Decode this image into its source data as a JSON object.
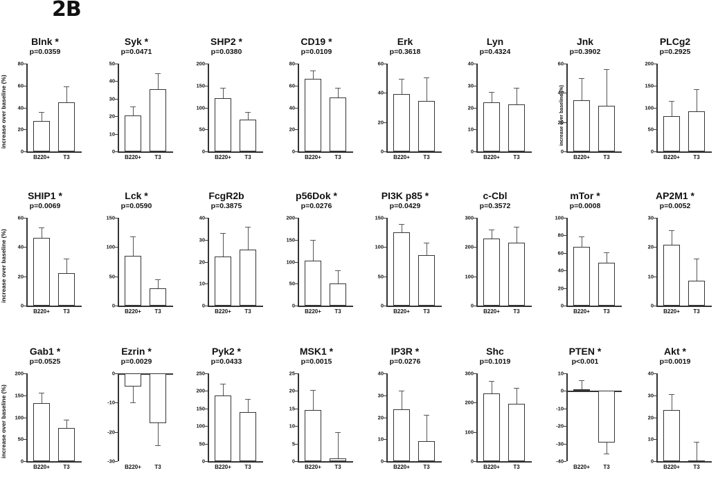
{
  "figure": {
    "label": "2B",
    "ylabel": "increase over baseline (%)",
    "groups": [
      "B220+",
      "T3"
    ]
  },
  "chart_data": [
    {
      "type": "bar",
      "title": "Blnk *",
      "pvalue": "p=0.0359",
      "categories": [
        "B220+",
        "T3"
      ],
      "values": [
        28,
        45
      ],
      "errors": [
        8,
        14
      ],
      "yticks": [
        0,
        20,
        40,
        60,
        80
      ],
      "ylim": [
        0,
        80
      ],
      "ylabel": "increase over baseline (%)"
    },
    {
      "type": "bar",
      "title": "Syk *",
      "pvalue": "p=0.0471",
      "categories": [
        "B220+",
        "T3"
      ],
      "values": [
        20.5,
        35.5
      ],
      "errors": [
        5,
        9
      ],
      "yticks": [
        0,
        10,
        20,
        30,
        40,
        50
      ],
      "ylim": [
        0,
        50
      ]
    },
    {
      "type": "bar",
      "title": "SHP2 *",
      "pvalue": "p=0.0380",
      "categories": [
        "B220+",
        "T3"
      ],
      "values": [
        122,
        72
      ],
      "errors": [
        23,
        18
      ],
      "yticks": [
        0,
        50,
        100,
        150,
        200
      ],
      "ylim": [
        0,
        200
      ]
    },
    {
      "type": "bar",
      "title": "CD19 *",
      "pvalue": "p=0.0109",
      "categories": [
        "B220+",
        "T3"
      ],
      "values": [
        66,
        49
      ],
      "errors": [
        8,
        9
      ],
      "yticks": [
        0,
        20,
        40,
        60,
        80
      ],
      "ylim": [
        0,
        80
      ]
    },
    {
      "type": "bar",
      "title": "Erk",
      "pvalue": "p=0.3618",
      "categories": [
        "B220+",
        "T3"
      ],
      "values": [
        39,
        34.5
      ],
      "errors": [
        10.5,
        16
      ],
      "yticks": [
        0,
        20,
        40,
        60
      ],
      "ylim": [
        0,
        60
      ]
    },
    {
      "type": "bar",
      "title": "Lyn",
      "pvalue": "p=0.4324",
      "categories": [
        "B220+",
        "T3"
      ],
      "values": [
        22.5,
        21.5
      ],
      "errors": [
        4.5,
        7.5
      ],
      "yticks": [
        0,
        10,
        20,
        30,
        40
      ],
      "ylim": [
        0,
        40
      ]
    },
    {
      "type": "bar",
      "title": "Jnk",
      "pvalue": "p=0.3902",
      "categories": [
        "B220+",
        "T3"
      ],
      "values": [
        35,
        31
      ],
      "errors": [
        15,
        25
      ],
      "yticks": [
        0,
        20,
        40,
        60
      ],
      "ylim": [
        0,
        60
      ],
      "ylabel": "increase over baseline (%)"
    },
    {
      "type": "bar",
      "title": "PLCg2",
      "pvalue": "p=0.2925",
      "categories": [
        "B220+",
        "T3"
      ],
      "values": [
        80,
        92
      ],
      "errors": [
        35,
        50
      ],
      "yticks": [
        0,
        50,
        100,
        150,
        200
      ],
      "ylim": [
        0,
        200
      ]
    },
    {
      "type": "bar",
      "title": "SHIP1 *",
      "pvalue": "p=0.0069",
      "categories": [
        "B220+",
        "T3"
      ],
      "values": [
        46.5,
        22
      ],
      "errors": [
        7,
        10
      ],
      "yticks": [
        0,
        20,
        40,
        60
      ],
      "ylim": [
        0,
        60
      ],
      "ylabel": "increase over baseline (%)"
    },
    {
      "type": "bar",
      "title": "Lck *",
      "pvalue": "p=0.0590",
      "categories": [
        "B220+",
        "T3"
      ],
      "values": [
        85,
        30
      ],
      "errors": [
        33,
        15
      ],
      "yticks": [
        0,
        50,
        100,
        150
      ],
      "ylim": [
        0,
        150
      ]
    },
    {
      "type": "bar",
      "title": "FcgR2b",
      "pvalue": "p=0.3875",
      "categories": [
        "B220+",
        "T3"
      ],
      "values": [
        22.5,
        25.5
      ],
      "errors": [
        10.5,
        10.5
      ],
      "yticks": [
        0,
        10,
        20,
        30,
        40
      ],
      "ylim": [
        0,
        40
      ]
    },
    {
      "type": "bar",
      "title": "p56Dok *",
      "pvalue": "p=0.0276",
      "categories": [
        "B220+",
        "T3"
      ],
      "values": [
        102,
        50
      ],
      "errors": [
        48,
        30
      ],
      "yticks": [
        0,
        50,
        100,
        150,
        200
      ],
      "ylim": [
        0,
        200
      ]
    },
    {
      "type": "bar",
      "title": "PI3K p85 *",
      "pvalue": "p=0.0429",
      "categories": [
        "B220+",
        "T3"
      ],
      "values": [
        125,
        86
      ],
      "errors": [
        14,
        21
      ],
      "yticks": [
        0,
        50,
        100,
        150
      ],
      "ylim": [
        0,
        150
      ]
    },
    {
      "type": "bar",
      "title": "c-Cbl",
      "pvalue": "p=0.3572",
      "categories": [
        "B220+",
        "T3"
      ],
      "values": [
        228,
        215
      ],
      "errors": [
        32,
        55
      ],
      "yticks": [
        0,
        100,
        200,
        300
      ],
      "ylim": [
        0,
        300
      ]
    },
    {
      "type": "bar",
      "title": "mTor *",
      "pvalue": "p=0.0008",
      "categories": [
        "B220+",
        "T3"
      ],
      "values": [
        67,
        49
      ],
      "errors": [
        12,
        12
      ],
      "yticks": [
        0,
        20,
        40,
        60,
        80,
        100
      ],
      "ylim": [
        0,
        100
      ]
    },
    {
      "type": "bar",
      "title": "AP2M1 *",
      "pvalue": "p=0.0052",
      "categories": [
        "B220+",
        "T3"
      ],
      "values": [
        20.7,
        8.5
      ],
      "errors": [
        5,
        7.5
      ],
      "yticks": [
        0,
        10,
        20,
        30
      ],
      "ylim": [
        0,
        30
      ]
    },
    {
      "type": "bar",
      "title": "Gab1 *",
      "pvalue": "p=0.0525",
      "categories": [
        "B220+",
        "T3"
      ],
      "values": [
        132,
        75
      ],
      "errors": [
        24,
        20
      ],
      "yticks": [
        0,
        50,
        100,
        150,
        200
      ],
      "ylim": [
        0,
        200
      ],
      "ylabel": "increase over baseline (%)"
    },
    {
      "type": "bar",
      "title": "Ezrin *",
      "pvalue": "p=0.0029",
      "categories": [
        "B220+",
        "T3"
      ],
      "values": [
        -4.5,
        -17
      ],
      "errors": [
        5.5,
        7.5
      ],
      "yticks": [
        -30,
        -20,
        -10,
        0
      ],
      "ylim": [
        -30,
        0
      ]
    },
    {
      "type": "bar",
      "title": "Pyk2 *",
      "pvalue": "p=0.0433",
      "categories": [
        "B220+",
        "T3"
      ],
      "values": [
        187,
        139
      ],
      "errors": [
        33,
        39
      ],
      "yticks": [
        0,
        50,
        100,
        150,
        200,
        250
      ],
      "ylim": [
        0,
        250
      ]
    },
    {
      "type": "bar",
      "title": "MSK1 *",
      "pvalue": "p=0.0015",
      "categories": [
        "B220+",
        "T3"
      ],
      "values": [
        14.5,
        0.8
      ],
      "errors": [
        5.8,
        7.5
      ],
      "yticks": [
        0,
        5,
        10,
        15,
        20,
        25
      ],
      "ylim": [
        0,
        25
      ]
    },
    {
      "type": "bar",
      "title": "IP3R *",
      "pvalue": "p=0.0276",
      "categories": [
        "B220+",
        "T3"
      ],
      "values": [
        23.7,
        9.2
      ],
      "errors": [
        8.5,
        12
      ],
      "yticks": [
        0,
        10,
        20,
        30,
        40
      ],
      "ylim": [
        0,
        40
      ]
    },
    {
      "type": "bar",
      "title": "Shc",
      "pvalue": "p=0.1019",
      "categories": [
        "B220+",
        "T3"
      ],
      "values": [
        231,
        196
      ],
      "errors": [
        42,
        55
      ],
      "yticks": [
        0,
        100,
        200,
        300
      ],
      "ylim": [
        0,
        300
      ]
    },
    {
      "type": "bar",
      "title": "PTEN *",
      "pvalue": "p<0.001",
      "categories": [
        "B220+",
        "T3"
      ],
      "values": [
        0.8,
        -29.5
      ],
      "errors": [
        5.2,
        6.2
      ],
      "yticks": [
        -40,
        -30,
        -20,
        -10,
        0,
        10
      ],
      "ylim": [
        -40,
        10
      ]
    },
    {
      "type": "bar",
      "title": "Akt *",
      "pvalue": "p=0.0019",
      "categories": [
        "B220+",
        "T3"
      ],
      "values": [
        23.3,
        0.3
      ],
      "errors": [
        7.2,
        8.4
      ],
      "yticks": [
        0,
        10,
        20,
        30,
        40
      ],
      "ylim": [
        0,
        40
      ]
    }
  ]
}
